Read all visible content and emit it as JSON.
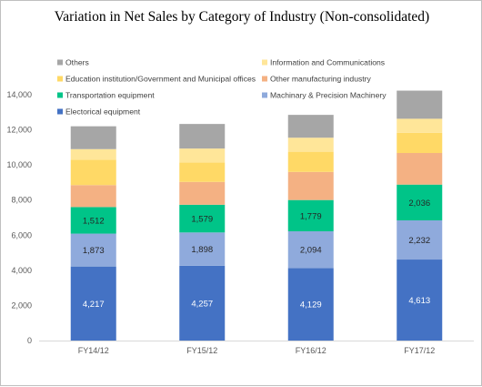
{
  "chart_data": {
    "type": "bar",
    "stacked": true,
    "title": "Variation in Net Sales by Category of Industry (Non-consolidated)",
    "categories": [
      "FY14/12",
      "FY15/12",
      "FY16/12",
      "FY17/12"
    ],
    "ylim": [
      0,
      14000
    ],
    "yticks": [
      0,
      2000,
      4000,
      6000,
      8000,
      10000,
      12000,
      14000
    ],
    "ytick_labels": [
      "0",
      "2,000",
      "4,000",
      "6,000",
      "8,000",
      "10,000",
      "12,000",
      "14,000"
    ],
    "grid": false,
    "legend_position": "top-left",
    "series": [
      {
        "name": "Electorical equipment",
        "color": "#4472c4",
        "label_color": "#ffffff",
        "values": [
          4217,
          4257,
          4129,
          4613
        ],
        "labels": [
          "4,217",
          "4,257",
          "4,129",
          "4,613"
        ]
      },
      {
        "name": "Machinary & Precision Machinery",
        "color": "#8faadc",
        "label_color": "#262626",
        "values": [
          1873,
          1898,
          2094,
          2232
        ],
        "labels": [
          "1,873",
          "1,898",
          "2,094",
          "2,232"
        ]
      },
      {
        "name": "Transportation equipment",
        "color": "#00c488",
        "label_color": "#262626",
        "values": [
          1512,
          1579,
          1779,
          2036
        ],
        "labels": [
          "1,512",
          "1,579",
          "1,779",
          "2,036"
        ]
      },
      {
        "name": "Other manufacturing industry",
        "color": "#f4b183",
        "label_color": "#262626",
        "values": [
          1250,
          1300,
          1600,
          1800
        ],
        "labels": null
      },
      {
        "name": "Education institution/Government and Municipal offices",
        "color": "#ffd966",
        "label_color": "#262626",
        "values": [
          1450,
          1100,
          1150,
          1150
        ],
        "labels": null
      },
      {
        "name": "Information and Communications",
        "color": "#ffe699",
        "label_color": "#262626",
        "values": [
          600,
          800,
          800,
          800
        ],
        "labels": null
      },
      {
        "name": "Others",
        "color": "#a6a6a6",
        "label_color": "#262626",
        "values": [
          1300,
          1400,
          1300,
          1600
        ],
        "labels": null
      }
    ],
    "legend_order": [
      "Others",
      "Information and Communications",
      "Education institution/Government and Municipal offices",
      "Other manufacturing industry",
      "Transportation equipment",
      "Machinary & Precision Machinery",
      "Electorical equipment"
    ]
  }
}
